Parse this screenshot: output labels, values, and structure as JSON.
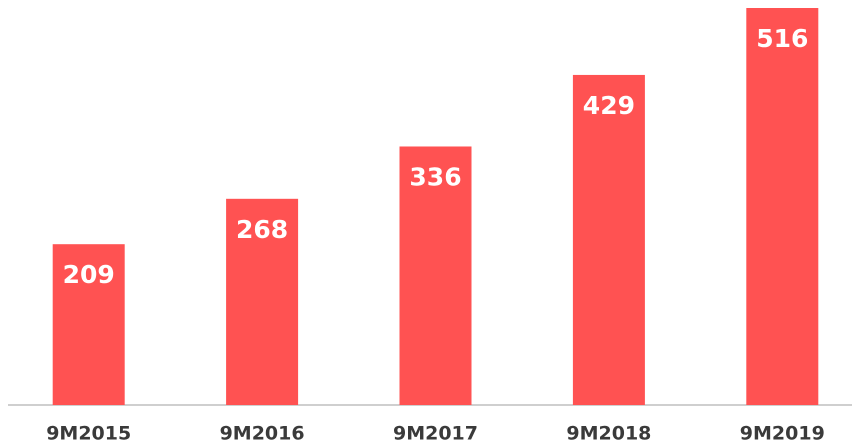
{
  "chart_data": {
    "type": "bar",
    "categories": [
      "9M2015",
      "9M2016",
      "9M2017",
      "9M2018",
      "9M2019"
    ],
    "values": [
      209,
      268,
      336,
      429,
      516
    ],
    "color": "#ff5252"
  }
}
